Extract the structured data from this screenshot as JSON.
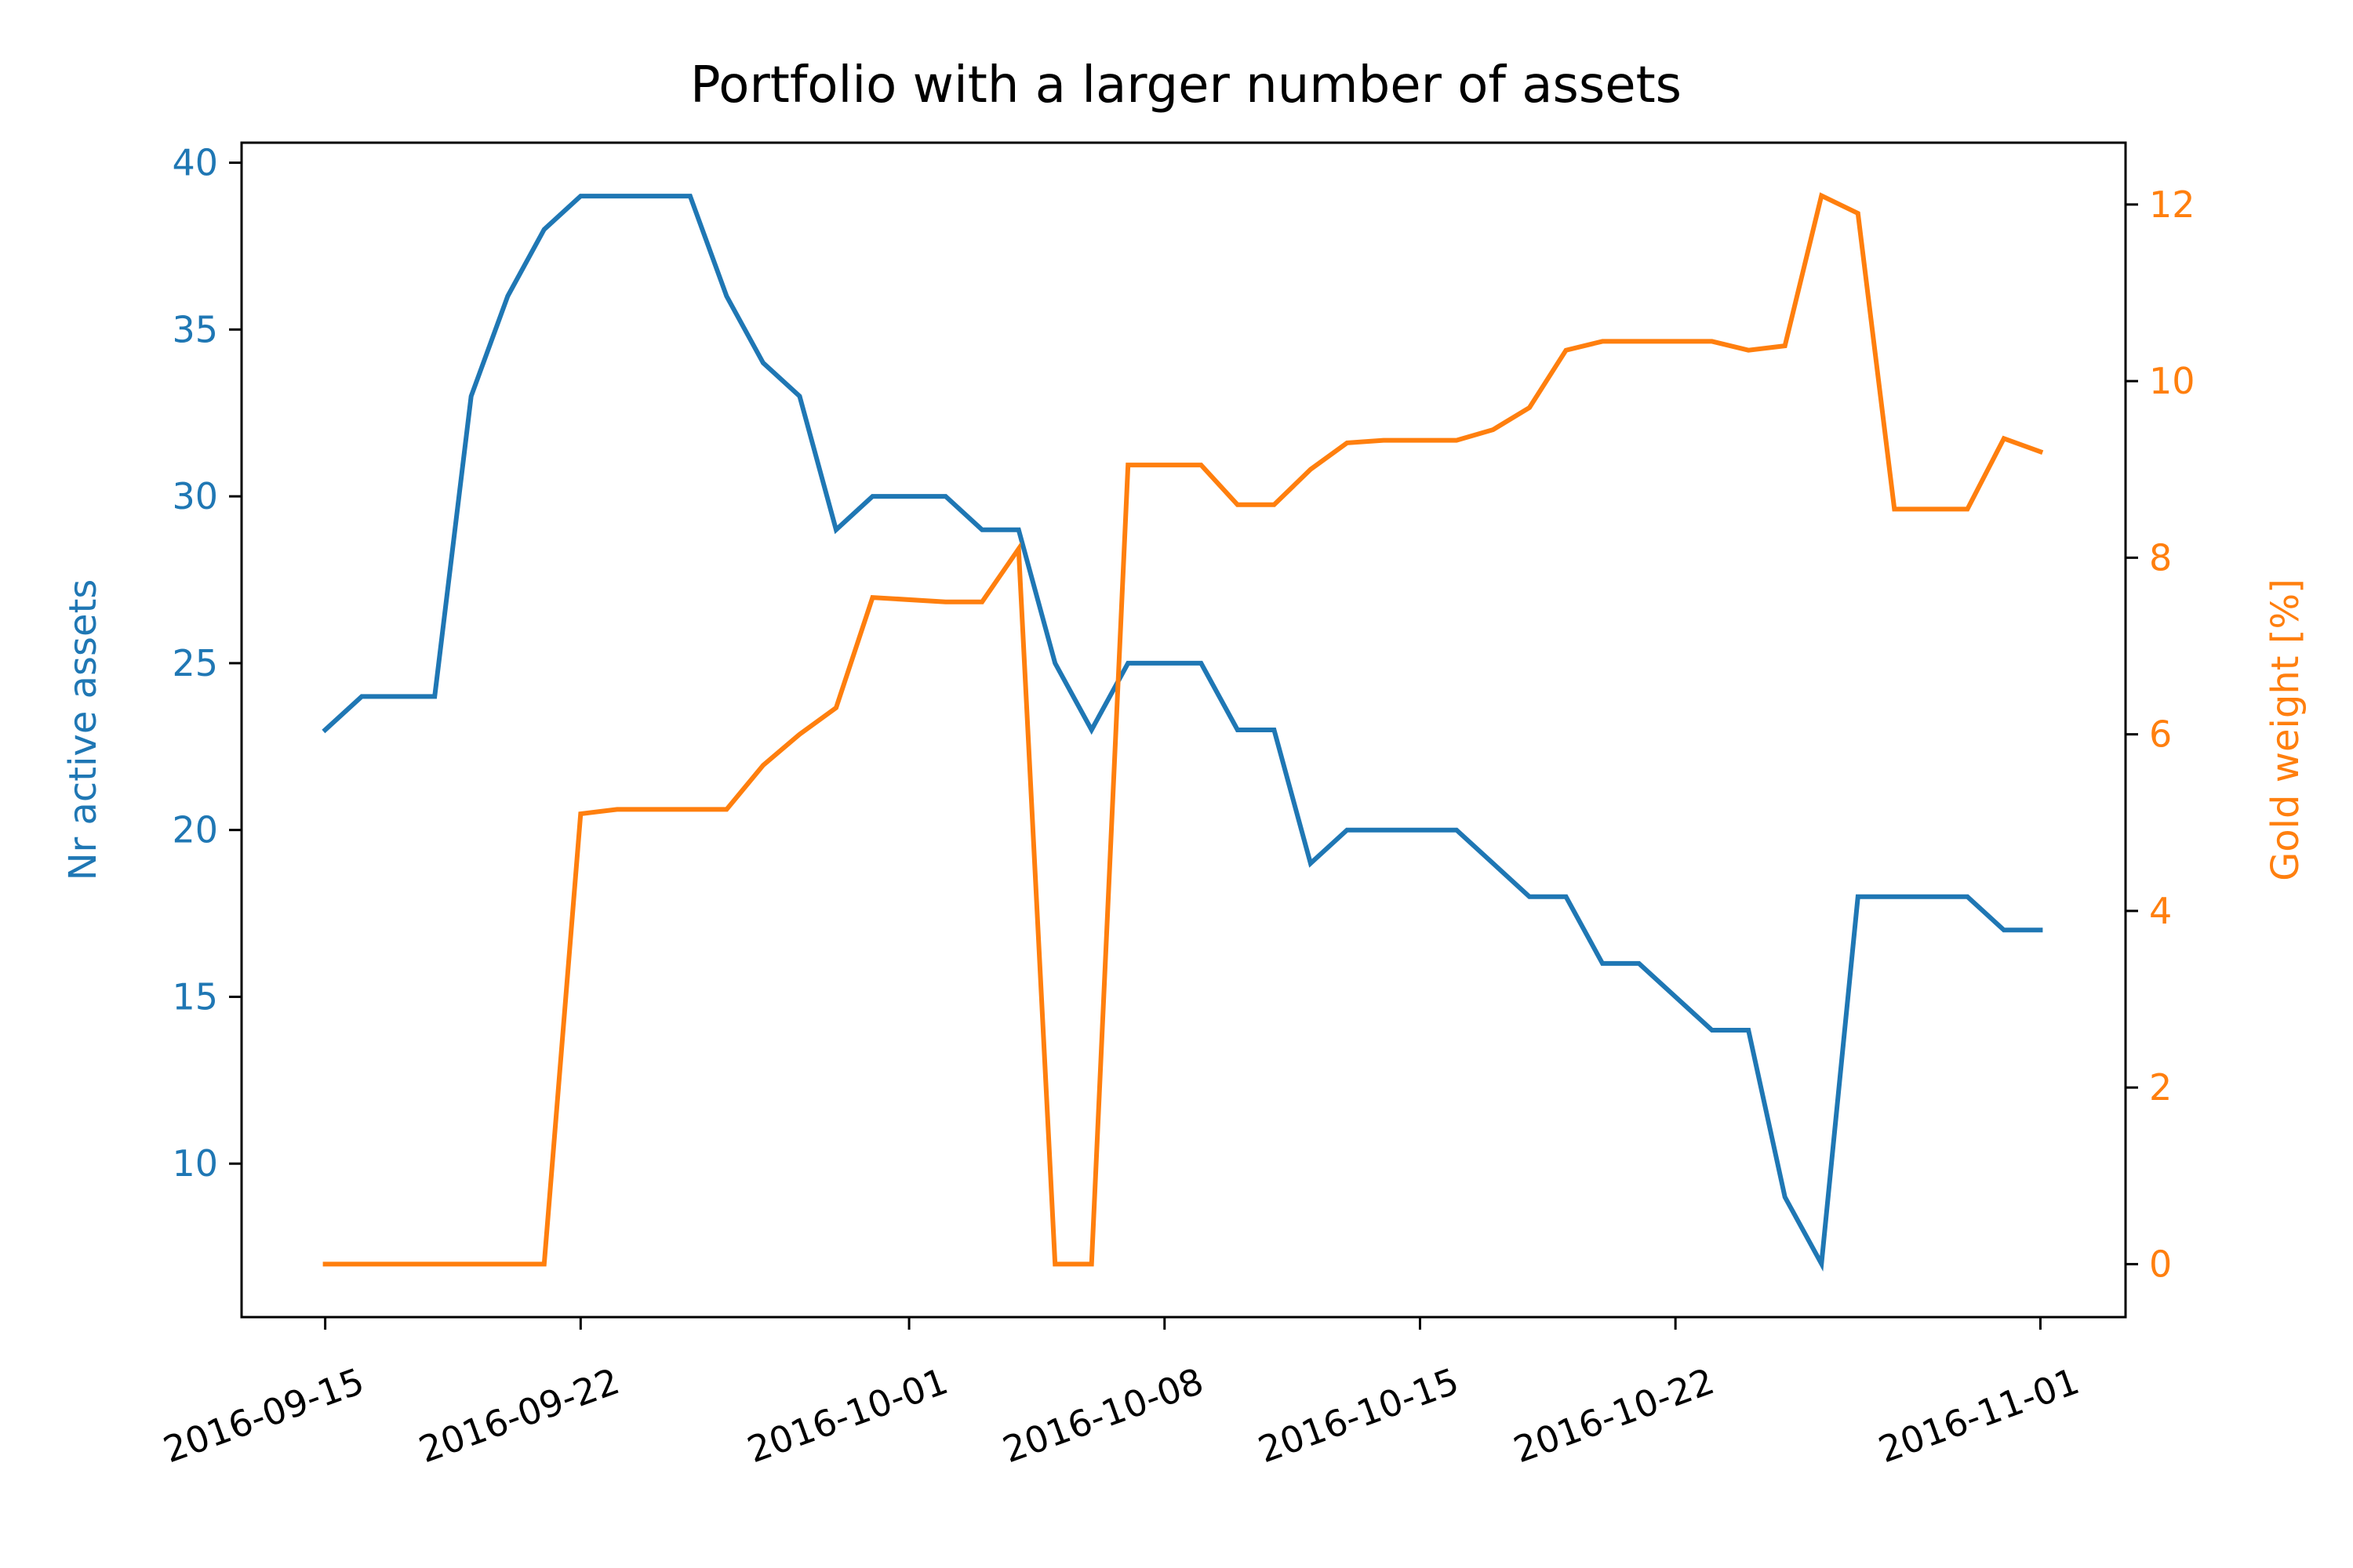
{
  "chart_data": {
    "type": "line",
    "title": "Portfolio with a larger number of assets",
    "xlabel": "",
    "x_tick_labels": [
      "2016-09-15",
      "2016-09-22",
      "2016-10-01",
      "2016-10-08",
      "2016-10-15",
      "2016-10-22",
      "2016-11-01"
    ],
    "x_tick_dates": [
      "2016-09-15",
      "2016-09-22",
      "2016-10-01",
      "2016-10-08",
      "2016-10-15",
      "2016-10-22",
      "2016-11-01"
    ],
    "x_lim": [
      "2016-09-12T17:00",
      "2016-11-03T08:00"
    ],
    "dates": [
      "2016-09-15",
      "2016-09-16",
      "2016-09-18",
      "2016-09-19",
      "2016-09-20",
      "2016-09-21",
      "2016-09-22",
      "2016-09-23",
      "2016-09-25",
      "2016-09-26",
      "2016-09-27",
      "2016-09-28",
      "2016-09-29",
      "2016-09-30",
      "2016-10-02",
      "2016-10-03",
      "2016-10-04",
      "2016-10-05",
      "2016-10-06",
      "2016-10-07",
      "2016-10-09",
      "2016-10-10",
      "2016-10-11",
      "2016-10-12",
      "2016-10-13",
      "2016-10-14",
      "2016-10-16",
      "2016-10-17",
      "2016-10-18",
      "2016-10-19",
      "2016-10-20",
      "2016-10-21",
      "2016-10-23",
      "2016-10-24",
      "2016-10-25",
      "2016-10-26",
      "2016-10-27",
      "2016-10-28",
      "2016-10-30",
      "2016-10-31",
      "2016-11-01"
    ],
    "series": [
      {
        "name": "",
        "axis": "left",
        "color": "#1f77b4",
        "ylabel": "Nr active assets",
        "y_ticks": [
          10,
          15,
          20,
          25,
          30,
          35,
          40
        ],
        "ylim": [
          5.4,
          40.6
        ],
        "values": [
          23,
          24,
          24,
          33,
          36,
          38,
          39,
          39,
          39,
          36,
          34,
          33,
          29,
          30,
          30,
          29,
          29,
          25,
          23,
          25,
          25,
          23,
          23,
          19,
          20,
          20,
          20,
          19,
          18,
          18,
          16,
          16,
          14,
          14,
          9,
          7,
          18,
          18,
          18,
          17,
          17
        ]
      },
      {
        "name": "",
        "axis": "right",
        "color": "#ff7f0e",
        "ylabel": "Gold weight [%]",
        "y_ticks": [
          0,
          2,
          4,
          6,
          8,
          10,
          12
        ],
        "ylim": [
          -0.6,
          12.7
        ],
        "values": [
          0,
          0,
          0,
          0,
          0,
          0,
          5.1,
          5.15,
          5.15,
          5.15,
          5.65,
          6.0,
          6.3,
          7.55,
          7.5,
          7.5,
          8.1,
          0,
          0,
          9.05,
          9.05,
          8.6,
          8.6,
          9.0,
          9.3,
          9.33,
          9.33,
          9.45,
          9.7,
          10.35,
          10.45,
          10.45,
          10.45,
          10.35,
          10.4,
          12.1,
          11.9,
          8.55,
          8.55,
          9.35,
          9.2
        ]
      }
    ],
    "grid": false,
    "legend": "none"
  }
}
